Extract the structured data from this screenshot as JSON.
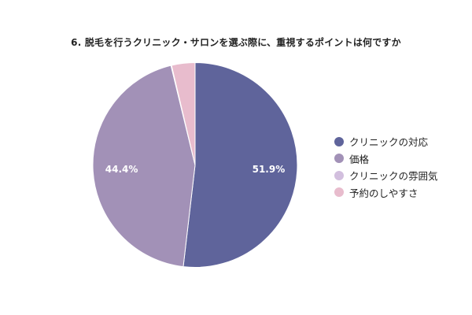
{
  "chart_data": {
    "type": "pie",
    "title": "6. 脱毛を行うクリニック・サロンを選ぶ際に、重視するポイントは何ですか",
    "categories": [
      "クリニックの対応",
      "価格",
      "クリニックの雰囲気",
      "予約のしやすさ"
    ],
    "values": [
      51.9,
      44.4,
      0.1,
      3.7
    ],
    "data_labels": [
      "51.9%",
      "44.4%",
      "",
      ""
    ],
    "colors": [
      "#5f649b",
      "#a291b7",
      "#d2bfde",
      "#e8bccd"
    ],
    "legend_position": "right"
  }
}
